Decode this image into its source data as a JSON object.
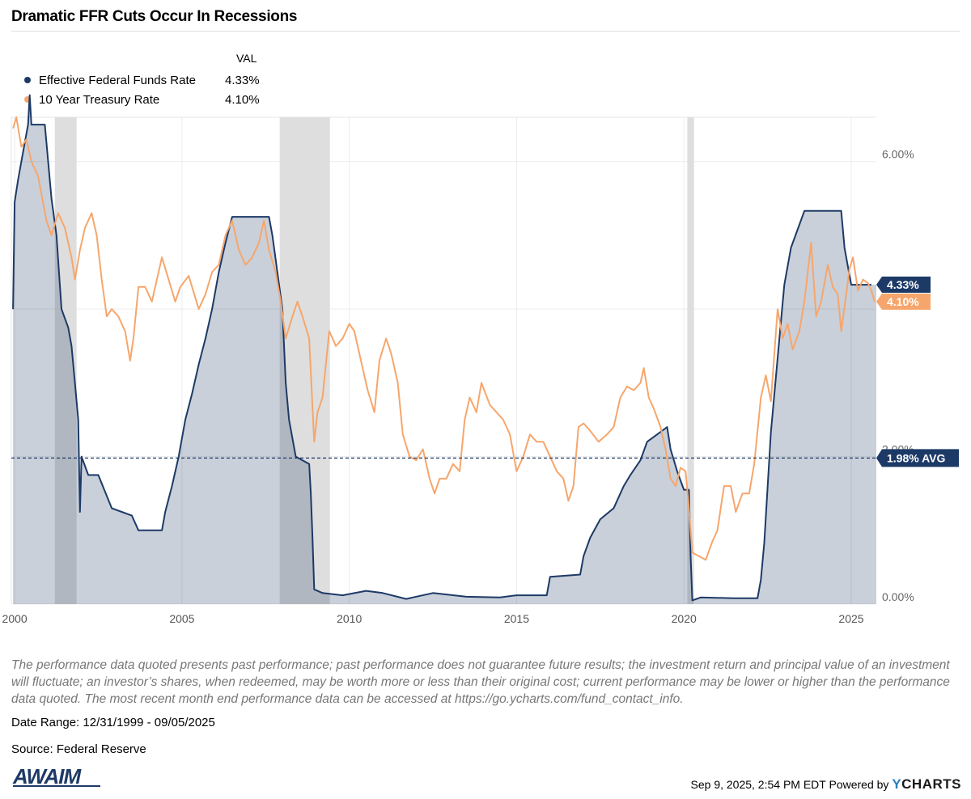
{
  "title": "Dramatic FFR Cuts Occur In Recessions",
  "legend": {
    "header": "VAL",
    "items": [
      {
        "label": "Effective Federal Funds Rate",
        "value": "4.33%",
        "color": "#1d3a66"
      },
      {
        "label": "10 Year Treasury Rate",
        "value": "4.10%",
        "color": "#f6a66c"
      }
    ]
  },
  "chart_data": {
    "type": "area",
    "xlim": [
      1999.9,
      2025.75
    ],
    "ylim": [
      0,
      6.6
    ],
    "y_ticks": [
      {
        "v": 0,
        "label": "0.00%"
      },
      {
        "v": 2,
        "label": "2.00%"
      },
      {
        "v": 4,
        "label": "4.00%"
      },
      {
        "v": 6,
        "label": "6.00%"
      }
    ],
    "x_ticks": [
      {
        "v": 2000,
        "label": "2000"
      },
      {
        "v": 2005,
        "label": "2005"
      },
      {
        "v": 2010,
        "label": "2010"
      },
      {
        "v": 2015,
        "label": "2015"
      },
      {
        "v": 2020,
        "label": "2020"
      },
      {
        "v": 2025,
        "label": "2025"
      }
    ],
    "grid": true,
    "recessions": [
      [
        2001.2,
        2001.85
      ],
      [
        2007.92,
        2009.42
      ],
      [
        2020.1,
        2020.3
      ]
    ],
    "avg": {
      "value": 1.98,
      "label": "1.98% AVG",
      "color": "#1d3a66"
    },
    "end_labels": [
      {
        "value": 4.33,
        "label": "4.33%",
        "color": "#1d3a66"
      },
      {
        "value": 4.1,
        "label": "4.10%",
        "color": "#f6a66c"
      }
    ],
    "series": [
      {
        "name": "Effective Federal Funds Rate",
        "color": "#1d3a66",
        "fill": true,
        "points": [
          [
            1999.95,
            4.0
          ],
          [
            2000.0,
            5.45
          ],
          [
            2000.1,
            5.75
          ],
          [
            2000.2,
            6.0
          ],
          [
            2000.4,
            6.5
          ],
          [
            2000.45,
            6.9
          ],
          [
            2000.5,
            6.5
          ],
          [
            2000.9,
            6.5
          ],
          [
            2001.0,
            6.0
          ],
          [
            2001.1,
            5.5
          ],
          [
            2001.25,
            5.0
          ],
          [
            2001.4,
            4.0
          ],
          [
            2001.6,
            3.75
          ],
          [
            2001.7,
            3.5
          ],
          [
            2001.8,
            3.0
          ],
          [
            2001.9,
            2.5
          ],
          [
            2001.95,
            1.25
          ],
          [
            2002.0,
            2.0
          ],
          [
            2002.2,
            1.75
          ],
          [
            2002.5,
            1.75
          ],
          [
            2002.9,
            1.3
          ],
          [
            2003.2,
            1.25
          ],
          [
            2003.5,
            1.2
          ],
          [
            2003.7,
            1.0
          ],
          [
            2004.4,
            1.0
          ],
          [
            2004.5,
            1.25
          ],
          [
            2004.7,
            1.6
          ],
          [
            2004.9,
            2.0
          ],
          [
            2005.1,
            2.5
          ],
          [
            2005.3,
            2.85
          ],
          [
            2005.5,
            3.25
          ],
          [
            2005.7,
            3.6
          ],
          [
            2005.9,
            4.0
          ],
          [
            2006.1,
            4.5
          ],
          [
            2006.3,
            4.9
          ],
          [
            2006.5,
            5.25
          ],
          [
            2007.6,
            5.25
          ],
          [
            2007.7,
            5.0
          ],
          [
            2007.85,
            4.5
          ],
          [
            2008.0,
            4.0
          ],
          [
            2008.1,
            3.0
          ],
          [
            2008.2,
            2.5
          ],
          [
            2008.4,
            2.0
          ],
          [
            2008.8,
            1.9
          ],
          [
            2008.85,
            1.5
          ],
          [
            2008.9,
            0.9
          ],
          [
            2008.95,
            0.2
          ],
          [
            2009.2,
            0.15
          ],
          [
            2009.8,
            0.12
          ],
          [
            2010.5,
            0.18
          ],
          [
            2011.0,
            0.15
          ],
          [
            2011.7,
            0.07
          ],
          [
            2012.5,
            0.15
          ],
          [
            2013.5,
            0.1
          ],
          [
            2014.5,
            0.09
          ],
          [
            2015.0,
            0.12
          ],
          [
            2015.9,
            0.12
          ],
          [
            2016.0,
            0.37
          ],
          [
            2016.9,
            0.4
          ],
          [
            2017.0,
            0.65
          ],
          [
            2017.2,
            0.9
          ],
          [
            2017.5,
            1.15
          ],
          [
            2017.9,
            1.3
          ],
          [
            2018.2,
            1.6
          ],
          [
            2018.4,
            1.75
          ],
          [
            2018.7,
            1.95
          ],
          [
            2018.9,
            2.2
          ],
          [
            2019.5,
            2.4
          ],
          [
            2019.6,
            2.1
          ],
          [
            2019.8,
            1.8
          ],
          [
            2020.0,
            1.55
          ],
          [
            2020.15,
            1.55
          ],
          [
            2020.2,
            0.65
          ],
          [
            2020.25,
            0.05
          ],
          [
            2020.5,
            0.09
          ],
          [
            2021.5,
            0.08
          ],
          [
            2022.2,
            0.08
          ],
          [
            2022.3,
            0.33
          ],
          [
            2022.4,
            0.83
          ],
          [
            2022.5,
            1.58
          ],
          [
            2022.6,
            2.33
          ],
          [
            2022.75,
            3.08
          ],
          [
            2022.9,
            3.83
          ],
          [
            2023.0,
            4.33
          ],
          [
            2023.1,
            4.58
          ],
          [
            2023.2,
            4.83
          ],
          [
            2023.4,
            5.08
          ],
          [
            2023.6,
            5.33
          ],
          [
            2024.7,
            5.33
          ],
          [
            2024.8,
            4.83
          ],
          [
            2024.9,
            4.58
          ],
          [
            2025.0,
            4.33
          ],
          [
            2025.6,
            4.33
          ]
        ]
      },
      {
        "name": "10 Year Treasury Rate",
        "color": "#f6a66c",
        "fill": false,
        "points": [
          [
            1999.95,
            6.45
          ],
          [
            2000.05,
            6.6
          ],
          [
            2000.2,
            6.2
          ],
          [
            2000.35,
            6.3
          ],
          [
            2000.5,
            6.0
          ],
          [
            2000.7,
            5.8
          ],
          [
            2000.95,
            5.2
          ],
          [
            2001.1,
            5.0
          ],
          [
            2001.3,
            5.3
          ],
          [
            2001.5,
            5.1
          ],
          [
            2001.7,
            4.7
          ],
          [
            2001.8,
            4.4
          ],
          [
            2001.95,
            4.8
          ],
          [
            2002.1,
            5.1
          ],
          [
            2002.3,
            5.3
          ],
          [
            2002.45,
            5.0
          ],
          [
            2002.6,
            4.4
          ],
          [
            2002.75,
            3.9
          ],
          [
            2002.9,
            4.0
          ],
          [
            2003.1,
            3.9
          ],
          [
            2003.3,
            3.7
          ],
          [
            2003.45,
            3.3
          ],
          [
            2003.55,
            3.6
          ],
          [
            2003.7,
            4.3
          ],
          [
            2003.9,
            4.3
          ],
          [
            2004.1,
            4.1
          ],
          [
            2004.4,
            4.7
          ],
          [
            2004.6,
            4.4
          ],
          [
            2004.8,
            4.1
          ],
          [
            2004.95,
            4.3
          ],
          [
            2005.2,
            4.45
          ],
          [
            2005.5,
            4.0
          ],
          [
            2005.7,
            4.2
          ],
          [
            2005.9,
            4.5
          ],
          [
            2006.1,
            4.6
          ],
          [
            2006.3,
            5.0
          ],
          [
            2006.5,
            5.2
          ],
          [
            2006.7,
            4.8
          ],
          [
            2006.9,
            4.6
          ],
          [
            2007.1,
            4.7
          ],
          [
            2007.3,
            4.9
          ],
          [
            2007.45,
            5.2
          ],
          [
            2007.6,
            4.8
          ],
          [
            2007.8,
            4.5
          ],
          [
            2007.95,
            4.1
          ],
          [
            2008.1,
            3.6
          ],
          [
            2008.3,
            3.9
          ],
          [
            2008.45,
            4.1
          ],
          [
            2008.6,
            3.9
          ],
          [
            2008.8,
            3.6
          ],
          [
            2008.95,
            2.2
          ],
          [
            2009.05,
            2.6
          ],
          [
            2009.2,
            2.8
          ],
          [
            2009.4,
            3.7
          ],
          [
            2009.6,
            3.5
          ],
          [
            2009.8,
            3.6
          ],
          [
            2010.0,
            3.8
          ],
          [
            2010.15,
            3.7
          ],
          [
            2010.35,
            3.3
          ],
          [
            2010.55,
            2.9
          ],
          [
            2010.75,
            2.6
          ],
          [
            2010.9,
            3.3
          ],
          [
            2011.1,
            3.6
          ],
          [
            2011.25,
            3.4
          ],
          [
            2011.45,
            3.0
          ],
          [
            2011.6,
            2.3
          ],
          [
            2011.8,
            2.0
          ],
          [
            2012.0,
            1.95
          ],
          [
            2012.2,
            2.1
          ],
          [
            2012.4,
            1.7
          ],
          [
            2012.55,
            1.5
          ],
          [
            2012.7,
            1.7
          ],
          [
            2012.9,
            1.7
          ],
          [
            2013.1,
            1.9
          ],
          [
            2013.3,
            1.8
          ],
          [
            2013.45,
            2.5
          ],
          [
            2013.6,
            2.8
          ],
          [
            2013.8,
            2.6
          ],
          [
            2013.95,
            3.0
          ],
          [
            2014.2,
            2.7
          ],
          [
            2014.4,
            2.6
          ],
          [
            2014.6,
            2.5
          ],
          [
            2014.8,
            2.3
          ],
          [
            2015.0,
            1.8
          ],
          [
            2015.2,
            2.0
          ],
          [
            2015.4,
            2.3
          ],
          [
            2015.6,
            2.2
          ],
          [
            2015.8,
            2.2
          ],
          [
            2016.0,
            2.0
          ],
          [
            2016.2,
            1.8
          ],
          [
            2016.4,
            1.7
          ],
          [
            2016.55,
            1.4
          ],
          [
            2016.7,
            1.6
          ],
          [
            2016.85,
            2.4
          ],
          [
            2017.0,
            2.45
          ],
          [
            2017.2,
            2.35
          ],
          [
            2017.45,
            2.2
          ],
          [
            2017.7,
            2.3
          ],
          [
            2017.9,
            2.4
          ],
          [
            2018.1,
            2.8
          ],
          [
            2018.3,
            2.95
          ],
          [
            2018.5,
            2.9
          ],
          [
            2018.7,
            3.0
          ],
          [
            2018.8,
            3.2
          ],
          [
            2018.95,
            2.8
          ],
          [
            2019.1,
            2.65
          ],
          [
            2019.3,
            2.4
          ],
          [
            2019.45,
            2.1
          ],
          [
            2019.6,
            1.7
          ],
          [
            2019.75,
            1.6
          ],
          [
            2019.9,
            1.85
          ],
          [
            2020.05,
            1.8
          ],
          [
            2020.15,
            1.3
          ],
          [
            2020.25,
            0.7
          ],
          [
            2020.45,
            0.65
          ],
          [
            2020.65,
            0.6
          ],
          [
            2020.85,
            0.85
          ],
          [
            2021.0,
            1.0
          ],
          [
            2021.2,
            1.6
          ],
          [
            2021.4,
            1.6
          ],
          [
            2021.55,
            1.25
          ],
          [
            2021.75,
            1.5
          ],
          [
            2021.95,
            1.5
          ],
          [
            2022.1,
            1.9
          ],
          [
            2022.3,
            2.8
          ],
          [
            2022.45,
            3.1
          ],
          [
            2022.6,
            2.75
          ],
          [
            2022.8,
            4.0
          ],
          [
            2022.95,
            3.6
          ],
          [
            2023.1,
            3.8
          ],
          [
            2023.25,
            3.45
          ],
          [
            2023.45,
            3.7
          ],
          [
            2023.6,
            4.1
          ],
          [
            2023.8,
            4.9
          ],
          [
            2023.95,
            3.9
          ],
          [
            2024.1,
            4.1
          ],
          [
            2024.3,
            4.6
          ],
          [
            2024.45,
            4.3
          ],
          [
            2024.6,
            4.2
          ],
          [
            2024.7,
            3.7
          ],
          [
            2024.85,
            4.2
          ],
          [
            2024.95,
            4.55
          ],
          [
            2025.05,
            4.7
          ],
          [
            2025.2,
            4.25
          ],
          [
            2025.35,
            4.4
          ],
          [
            2025.5,
            4.35
          ],
          [
            2025.6,
            4.25
          ],
          [
            2025.7,
            4.1
          ]
        ]
      }
    ]
  },
  "disclaimer": "The performance data quoted presents past performance; past performance does not guarantee future results; the investment return and principal value of an investment will fluctuate; an investor’s shares, when redeemed, may be worth more or less than their original cost; current performance may be lower or higher than the performance data quoted. The most recent month end performance data can be accessed at https://go.ycharts.com/fund_contact_info.",
  "date_range": "Date Range: 12/31/1999 - 09/05/2025",
  "source": "Source: Federal Reserve",
  "logo_text": "AWAIM",
  "footer": {
    "timestamp": "Sep 9, 2025, 2:54 PM EDT",
    "powered_by": "Powered by",
    "brand_y": "Y",
    "brand_rest": "CHARTS"
  }
}
